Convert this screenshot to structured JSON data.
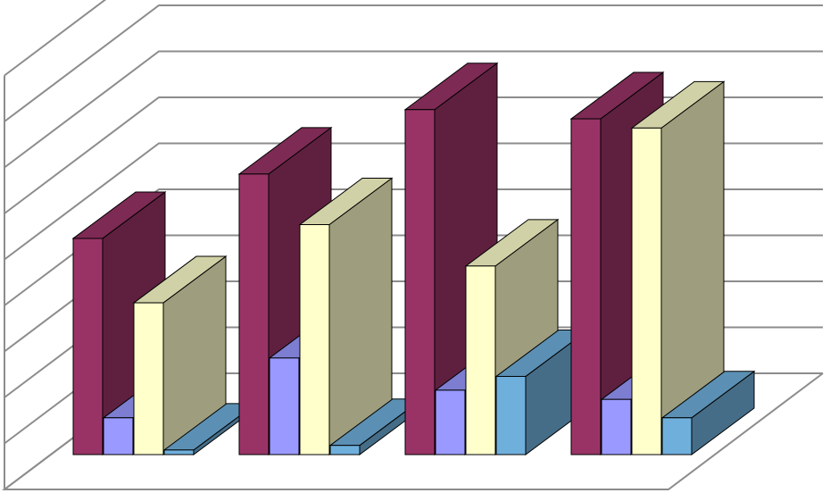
{
  "chart_data": {
    "type": "bar",
    "style": "3d-clustered-column",
    "title": "",
    "xlabel": "",
    "ylabel": "",
    "grid": true,
    "legend": "none",
    "ylim": [
      0,
      9
    ],
    "categories": [
      "",
      "",
      "",
      ""
    ],
    "series": [
      {
        "color": "#993366",
        "values": [
          4.7,
          6.1,
          7.5,
          7.3
        ]
      },
      {
        "color": "#9999ff",
        "values": [
          0.8,
          2.1,
          1.4,
          1.2
        ]
      },
      {
        "color": "#ffffcc",
        "values": [
          3.3,
          5.0,
          4.1,
          7.1
        ]
      },
      {
        "color": "#6fafdc",
        "values": [
          0.1,
          0.2,
          1.7,
          0.8
        ]
      }
    ]
  }
}
